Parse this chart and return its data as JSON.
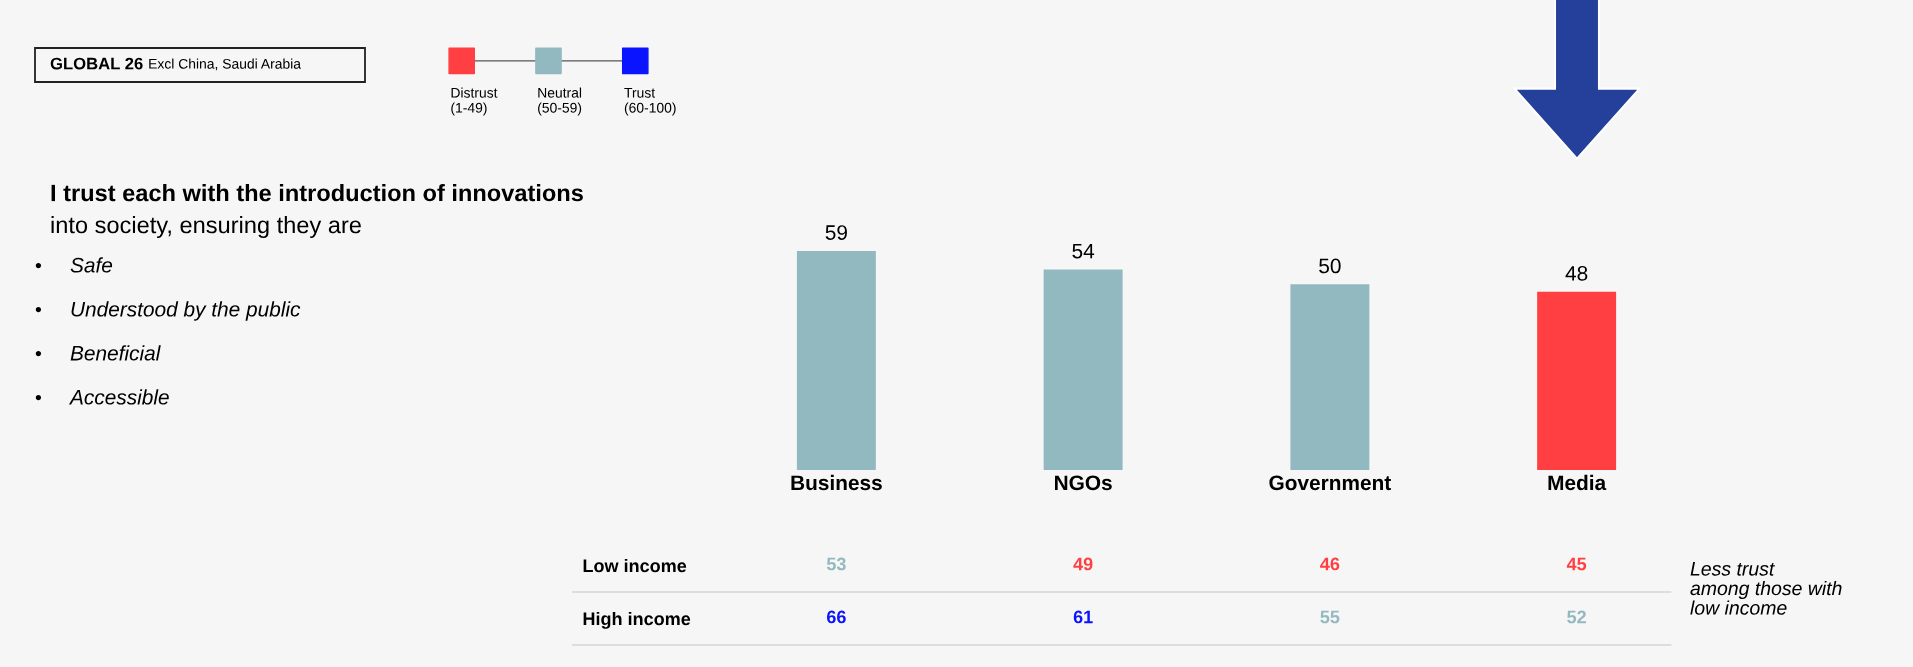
{
  "chart_data": [
    {
      "type": "bar",
      "categories": [
        "Business",
        "NGOs",
        "Government",
        "Media"
      ],
      "data_labels": true,
      "grid": false,
      "legend": false,
      "series": [
        {
          "type": "bar",
          "values": [
            59,
            54,
            50,
            48
          ],
          "colors": [
            "#93b9c0",
            "#93b9c0",
            "#93b9c0",
            "#ff3f41"
          ]
        }
      ],
      "annotations": [
        "I trust each with the introduction of innovations",
        "into society, ensuring they are",
        "•",
        "Safe",
        "•",
        "Understood by the public",
        "•",
        "Beneficial",
        "•",
        "Accessible"
      ]
    },
    {
      "type": "heatmap",
      "categories": [
        null,
        null,
        null,
        null
      ],
      "tick_labels": "y",
      "data_labels": true,
      "y_categories": [
        "Low income",
        "High income"
      ],
      "cells": [
        [
          53,
          49,
          46,
          45
        ],
        [
          66,
          61,
          55,
          52
        ]
      ],
      "colors": [
        [
          "#93b9c0",
          "#ff3f41",
          "#ff3f41",
          "#ff3f41"
        ],
        [
          "#0a14ff",
          "#0a14ff",
          "#93b9c0",
          "#93b9c0"
        ]
      ],
      "annotations": [
        "Less trust\namong those with\nlow income"
      ]
    },
    {
      "type": "other",
      "title": "GLOBAL 26",
      "subtitle": "Excl China, Saudi Arabia",
      "categories": [
        "Distrust\n(1-49)",
        "Neutral\n(50-59)",
        "Trust\n(60-100)"
      ],
      "colors": [
        "#ff3f41",
        "#93b9c0",
        "#0a14ff"
      ]
    }
  ]
}
